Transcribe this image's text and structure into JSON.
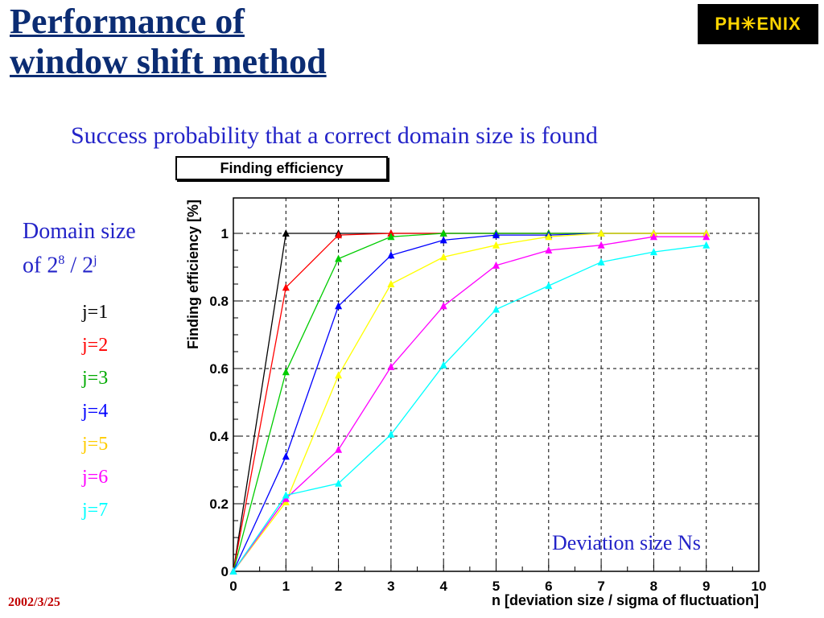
{
  "slide": {
    "title_line1": "Performance of",
    "title_line2": "window shift method",
    "logo_text": "PH✳ENIX",
    "subtitle": "Success probability that a correct domain size is found",
    "chart_box_title": "Finding efficiency",
    "domain_label_line1": "Domain size",
    "domain_label_line2_a": "of  2",
    "domain_label_sup1": "8",
    "domain_label_line2_b": " / 2",
    "domain_label_sup2": "j",
    "deviation_note": "Deviation size Ns",
    "date": "2002/3/25"
  },
  "chart_data": {
    "type": "line",
    "title": "Finding efficiency",
    "xlabel": "n [deviation size / sigma of fluctuation]",
    "ylabel": "Finding efficiency [%]",
    "xlim": [
      0,
      10
    ],
    "ylim": [
      0,
      1.05
    ],
    "x_ticks": [
      "0",
      "1",
      "2",
      "3",
      "4",
      "5",
      "6",
      "7",
      "8",
      "9",
      "10"
    ],
    "y_ticks": [
      "0",
      "0.2",
      "0.4",
      "0.6",
      "0.8",
      "1"
    ],
    "grid": true,
    "x": [
      0,
      1,
      2,
      3,
      4,
      5,
      6,
      7,
      8,
      9
    ],
    "series": [
      {
        "name": "j=1",
        "color": "#000000",
        "values": [
          0,
          1.0,
          1.0,
          1.0,
          1.0,
          1.0,
          1.0,
          1.0,
          1.0,
          1.0
        ]
      },
      {
        "name": "j=2",
        "color": "#ff0000",
        "values": [
          0,
          0.84,
          0.995,
          1.0,
          1.0,
          1.0,
          1.0,
          1.0,
          1.0,
          1.0
        ]
      },
      {
        "name": "j=3",
        "color": "#00cc00",
        "values": [
          0,
          0.59,
          0.925,
          0.99,
          1.0,
          1.0,
          1.0,
          1.0,
          1.0,
          1.0
        ]
      },
      {
        "name": "j=4",
        "color": "#0000ff",
        "values": [
          0,
          0.34,
          0.785,
          0.935,
          0.98,
          0.995,
          0.995,
          1.0,
          1.0,
          1.0
        ]
      },
      {
        "name": "j=5",
        "color": "#ffff00",
        "values": [
          0,
          0.205,
          0.58,
          0.85,
          0.93,
          0.965,
          0.99,
          1.0,
          1.0,
          1.0
        ]
      },
      {
        "name": "j=6",
        "color": "#ff00ff",
        "values": [
          0,
          0.215,
          0.36,
          0.605,
          0.785,
          0.905,
          0.95,
          0.965,
          0.99,
          0.99
        ]
      },
      {
        "name": "j=7",
        "color": "#00ffff",
        "values": [
          0,
          0.225,
          0.26,
          0.405,
          0.61,
          0.775,
          0.845,
          0.915,
          0.945,
          0.965
        ]
      }
    ]
  }
}
